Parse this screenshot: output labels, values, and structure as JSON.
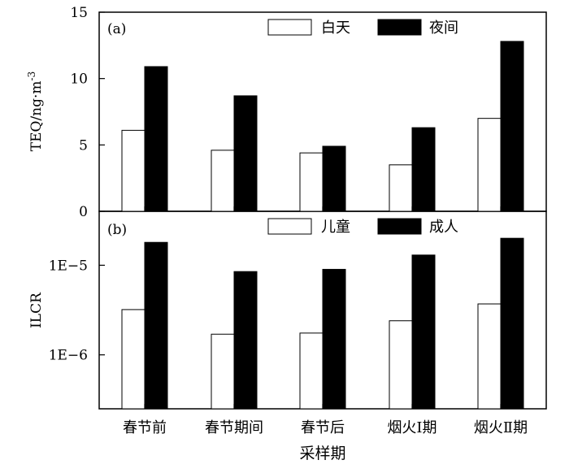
{
  "chart_data": [
    {
      "type": "bar",
      "panel_label": "(a)",
      "ylabel": "TEQ/ng·m",
      "ylabel_superscript": "-3",
      "ylim": [
        0,
        15
      ],
      "yscale": "linear",
      "yticks": [
        {
          "value": 0,
          "label": "0"
        },
        {
          "value": 5,
          "label": "5"
        },
        {
          "value": 10,
          "label": "10"
        },
        {
          "value": 15,
          "label": "15"
        }
      ],
      "legend_position": "top-right",
      "categories": [
        "春节前",
        "春节期间",
        "春节后",
        "烟火Ⅰ期",
        "烟火Ⅱ期"
      ],
      "series": [
        {
          "name": "白天",
          "color": "#ffffff",
          "values": [
            6.1,
            4.6,
            4.4,
            3.5,
            7.0
          ]
        },
        {
          "name": "夜间",
          "color": "#000000",
          "values": [
            10.9,
            8.7,
            4.9,
            6.3,
            12.8
          ]
        }
      ]
    },
    {
      "type": "bar",
      "panel_label": "(b)",
      "ylabel": "ILCR",
      "ylim": [
        2.5e-07,
        4e-05
      ],
      "yscale": "log",
      "yticks": [
        {
          "value": 1e-06,
          "label": "1E−6"
        },
        {
          "value": 1e-05,
          "label": "1E−5"
        }
      ],
      "legend_position": "top-right",
      "xlabel": "采样期",
      "categories": [
        "春节前",
        "春节期间",
        "春节后",
        "烟火Ⅰ期",
        "烟火Ⅱ期"
      ],
      "series": [
        {
          "name": "儿童",
          "color": "#ffffff",
          "values": [
            3.2e-06,
            1.7e-06,
            1.75e-06,
            2.4e-06,
            3.7e-06
          ]
        },
        {
          "name": "成人",
          "color": "#000000",
          "values": [
            1.8e-05,
            8.5e-06,
            9e-06,
            1.3e-05,
            2e-05
          ]
        }
      ]
    }
  ]
}
